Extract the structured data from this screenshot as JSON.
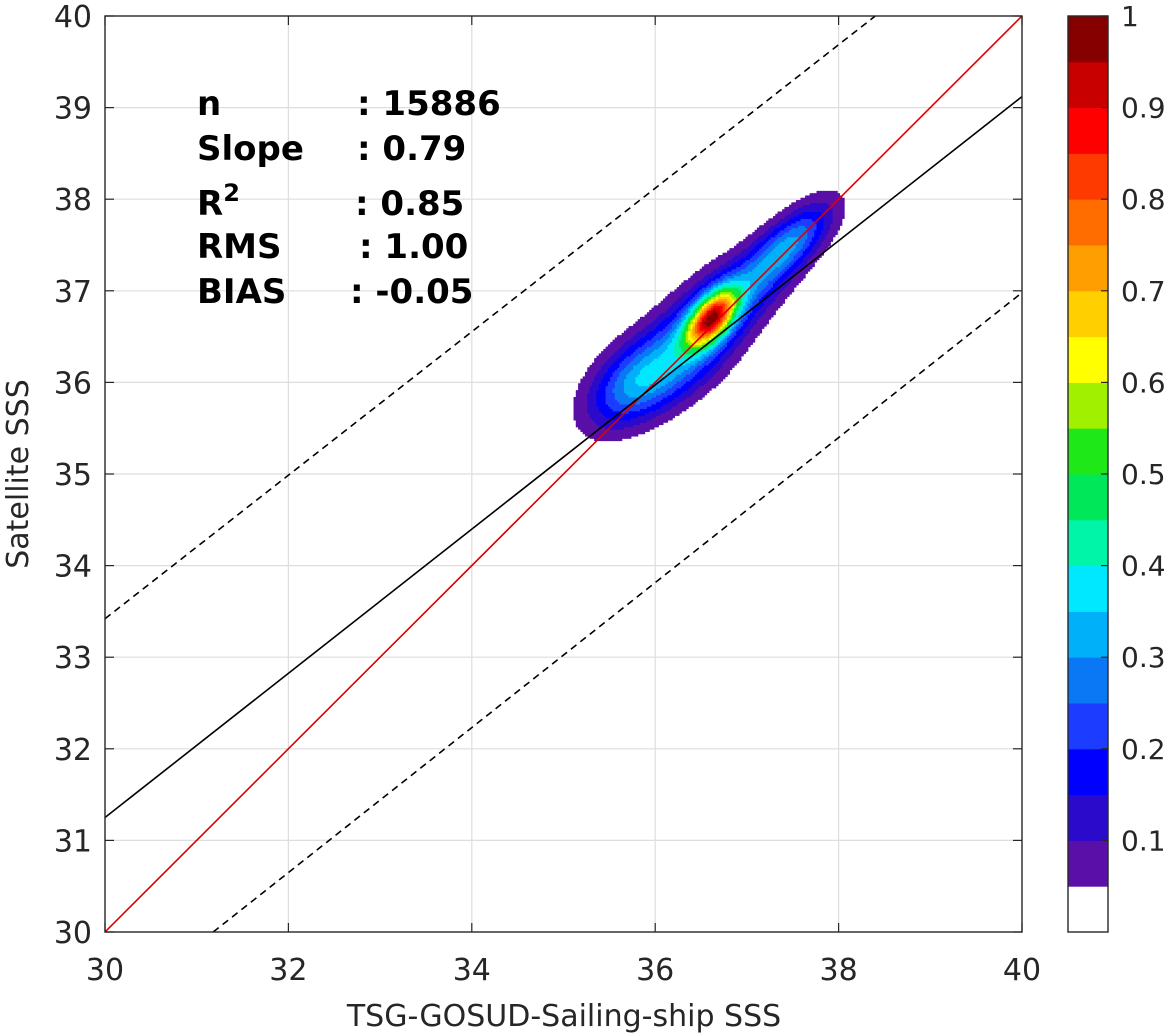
{
  "chart_data": {
    "type": "contour",
    "xlabel": "TSG-GOSUD-Sailing-ship SSS",
    "ylabel": "Satellite SSS",
    "xlim": [
      30,
      40
    ],
    "ylim": [
      30,
      40
    ],
    "xticks": [
      30,
      32,
      34,
      36,
      38,
      40
    ],
    "yticks": [
      30,
      31,
      32,
      33,
      34,
      35,
      36,
      37,
      38,
      39,
      40
    ],
    "grid": true,
    "stats": [
      {
        "label": "n",
        "value": ": 15886"
      },
      {
        "label": "Slope",
        "value": ": 0.79"
      },
      {
        "label": "R",
        "sup": "2",
        "value": ": 0.85"
      },
      {
        "label": "RMS",
        "value": ": 1.00"
      },
      {
        "label": "BIAS",
        "value": ": -0.05"
      }
    ],
    "lines": [
      {
        "name": "identity",
        "color": "#dd0000",
        "style": "solid",
        "points": [
          [
            30,
            30
          ],
          [
            40,
            40
          ]
        ]
      },
      {
        "name": "regression",
        "color": "#000000",
        "style": "solid",
        "points": [
          [
            30,
            31.25
          ],
          [
            40,
            39.12
          ]
        ]
      },
      {
        "name": "upper-bound",
        "color": "#000000",
        "style": "dashed",
        "points": [
          [
            30,
            33.42
          ],
          [
            38.4,
            40
          ]
        ]
      },
      {
        "name": "lower-bound",
        "color": "#000000",
        "style": "dashed",
        "points": [
          [
            31.18,
            30
          ],
          [
            40,
            36.98
          ]
        ]
      }
    ],
    "density_peaks": [
      {
        "x": 36.6,
        "y": 36.7,
        "peak": 1.0
      },
      {
        "x": 35.75,
        "y": 36.0,
        "peak": 0.3
      },
      {
        "x": 37.5,
        "y": 37.55,
        "peak": 0.3
      }
    ],
    "colorbar": {
      "ticks": [
        "0.1",
        "0.2",
        "0.3",
        "0.4",
        "0.5",
        "0.6",
        "0.7",
        "0.8",
        "0.9",
        "1"
      ],
      "levels": [
        {
          "min": 0.0,
          "color": "#ffffff"
        },
        {
          "min": 0.05,
          "color": "#5a0fa8"
        },
        {
          "min": 0.1,
          "color": "#2c0acc"
        },
        {
          "min": 0.15,
          "color": "#0000ff"
        },
        {
          "min": 0.2,
          "color": "#1c3cff"
        },
        {
          "min": 0.25,
          "color": "#0a78f5"
        },
        {
          "min": 0.3,
          "color": "#00b0f8"
        },
        {
          "min": 0.35,
          "color": "#00e8ff"
        },
        {
          "min": 0.4,
          "color": "#00f5a8"
        },
        {
          "min": 0.45,
          "color": "#00e85a"
        },
        {
          "min": 0.5,
          "color": "#1ee818"
        },
        {
          "min": 0.55,
          "color": "#a0f000"
        },
        {
          "min": 0.6,
          "color": "#ffff00"
        },
        {
          "min": 0.65,
          "color": "#ffcf00"
        },
        {
          "min": 0.7,
          "color": "#ff9e00"
        },
        {
          "min": 0.75,
          "color": "#ff6c00"
        },
        {
          "min": 0.8,
          "color": "#ff3a00"
        },
        {
          "min": 0.85,
          "color": "#ff0000"
        },
        {
          "min": 0.9,
          "color": "#c80000"
        },
        {
          "min": 0.95,
          "color": "#870000"
        }
      ]
    }
  }
}
